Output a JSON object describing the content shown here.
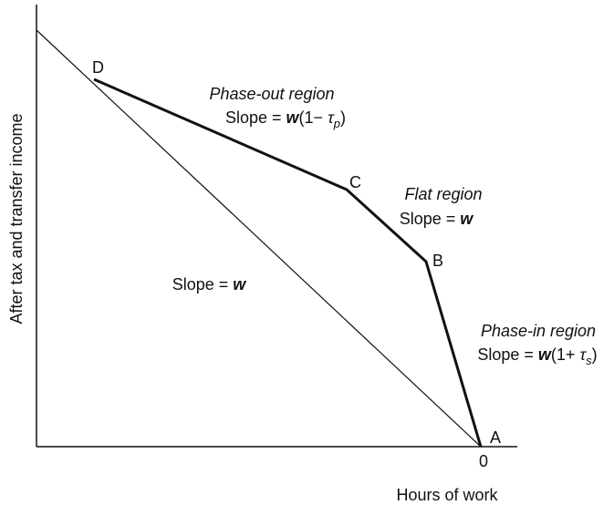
{
  "axes": {
    "y_label": "After tax and transfer income",
    "x_label": "Hours of work",
    "origin": "0"
  },
  "points": {
    "A": "A",
    "B": "B",
    "C": "C",
    "D": "D"
  },
  "regions": {
    "phase_out": {
      "title": "Phase-out region",
      "slope": [
        "Slope = ",
        "w",
        "(1− ",
        "τ",
        "p",
        ")"
      ]
    },
    "flat": {
      "title": "Flat region",
      "slope": [
        "Slope = ",
        "w"
      ]
    },
    "phase_in": {
      "title": "Phase-in region",
      "slope": [
        "Slope = ",
        "w",
        "(1+ ",
        "τ",
        "s",
        ")"
      ]
    },
    "baseline": {
      "slope": [
        "Slope = ",
        "w"
      ]
    }
  }
}
